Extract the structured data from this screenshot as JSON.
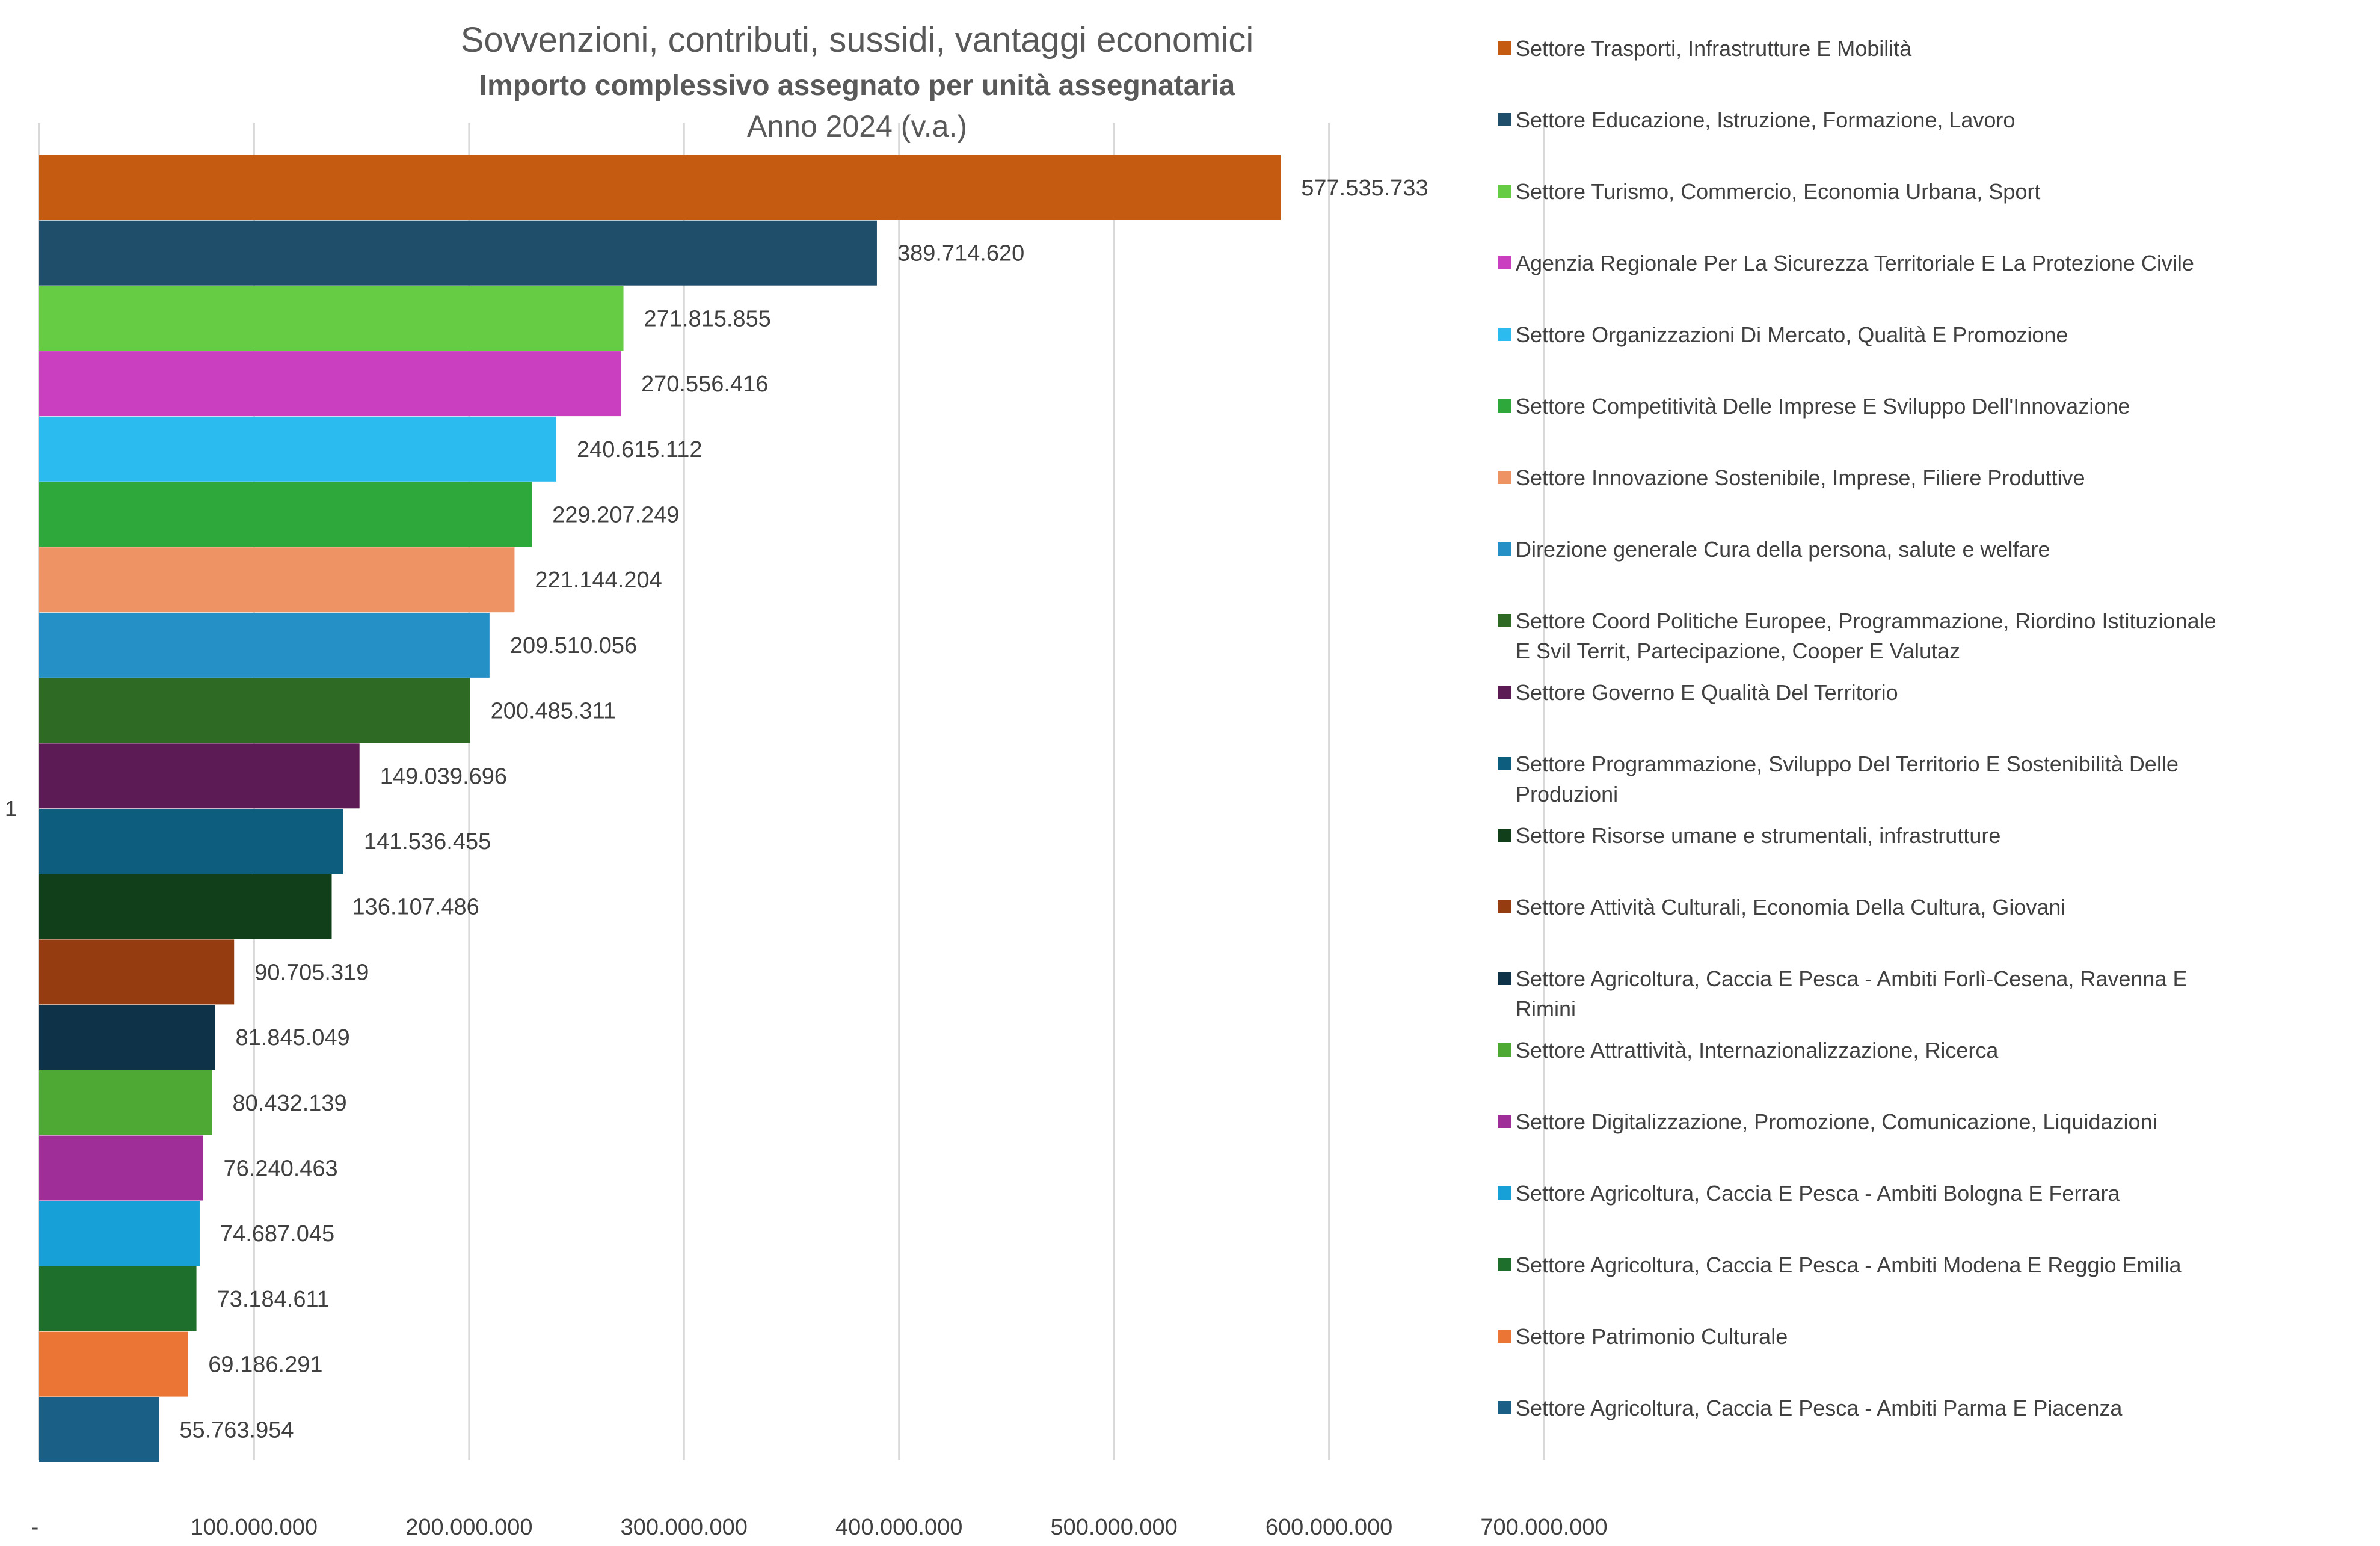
{
  "chart_data": {
    "type": "bar",
    "orientation": "horizontal",
    "title": "Sovvenzioni, contributi, sussidi, vantaggi economici",
    "subtitle": "Importo complessivo assegnato per unità assegnataria",
    "subtitle2": "Anno 2024 (v.a.)",
    "category": "1",
    "xlim": [
      0,
      700000000
    ],
    "xticks": [
      "-",
      "100.000.000",
      "200.000.000",
      "300.000.000",
      "400.000.000",
      "500.000.000",
      "600.000.000",
      "700.000.000"
    ],
    "grid": true,
    "legend_position": "right",
    "series": [
      {
        "name": "Settore Trasporti, Infrastrutture E Mobilità",
        "value": 577535733,
        "label": "577.535.733",
        "color": "#C55A11"
      },
      {
        "name": "Settore Educazione, Istruzione, Formazione, Lavoro",
        "value": 389714620,
        "label": "389.714.620",
        "color": "#1F4E6B"
      },
      {
        "name": "Settore Turismo, Commercio, Economia Urbana, Sport",
        "value": 271815855,
        "label": "271.815.855",
        "color": "#66CC44"
      },
      {
        "name": "Agenzia Regionale Per La Sicurezza Territoriale E La Protezione Civile",
        "value": 270556416,
        "label": "270.556.416",
        "color": "#C93FC0"
      },
      {
        "name": "Settore Organizzazioni Di Mercato, Qualità E Promozione",
        "value": 240615112,
        "label": "240.615.112",
        "color": "#2BBBEE"
      },
      {
        "name": "Settore Competitività Delle Imprese E Sviluppo Dell'Innovazione",
        "value": 229207249,
        "label": "229.207.249",
        "color": "#2EA83B"
      },
      {
        "name": "Settore Innovazione Sostenibile, Imprese, Filiere Produttive",
        "value": 221144204,
        "label": "221.144.204",
        "color": "#EE9364"
      },
      {
        "name": "Direzione generale Cura della persona, salute e welfare",
        "value": 209510056,
        "label": "209.510.056",
        "color": "#2590C6"
      },
      {
        "name": "Settore Coord Politiche Europee, Programmazione, Riordino Istituzionale E Svil Territ, Partecipazione, Cooper E Valutaz",
        "value": 200485311,
        "label": "200.485.311",
        "color": "#2E6A24"
      },
      {
        "name": "Settore Governo E Qualità Del Territorio",
        "value": 149039696,
        "label": "149.039.696",
        "color": "#5C1B54"
      },
      {
        "name": "Settore Programmazione, Sviluppo Del Territorio E Sostenibilità Delle Produzioni",
        "value": 141536455,
        "label": "141.536.455",
        "color": "#0D5E7E"
      },
      {
        "name": "Settore Risorse umane e strumentali, infrastrutture",
        "value": 136107486,
        "label": "136.107.486",
        "color": "#113F1A"
      },
      {
        "name": "Settore Attività Culturali, Economia Della Cultura, Giovani",
        "value": 90705319,
        "label": "90.705.319",
        "color": "#953D10"
      },
      {
        "name": "Settore Agricoltura, Caccia E Pesca - Ambiti  Forlì-Cesena, Ravenna E Rimini",
        "value": 81845049,
        "label": "81.845.049",
        "color": "#0E3349"
      },
      {
        "name": "Settore Attrattività, Internazionalizzazione, Ricerca",
        "value": 80432139,
        "label": "80.432.139",
        "color": "#4EA834"
      },
      {
        "name": "Settore Digitalizzazione, Promozione, Comunicazione, Liquidazioni",
        "value": 76240463,
        "label": "76.240.463",
        "color": "#A02E98"
      },
      {
        "name": "Settore Agricoltura, Caccia E Pesca - Ambiti Bologna E Ferrara",
        "value": 74687045,
        "label": "74.687.045",
        "color": "#16A0D7"
      },
      {
        "name": "Settore Agricoltura, Caccia E Pesca - Ambiti Modena E Reggio Emilia",
        "value": 73184611,
        "label": "73.184.611",
        "color": "#1E6F2C"
      },
      {
        "name": "Settore Patrimonio Culturale",
        "value": 69186291,
        "label": "69.186.291",
        "color": "#EB7535"
      },
      {
        "name": "Settore Agricoltura, Caccia E Pesca - Ambiti  Parma E Piacenza",
        "value": 55763954,
        "label": "55.763.954",
        "color": "#1A5F86"
      }
    ]
  }
}
